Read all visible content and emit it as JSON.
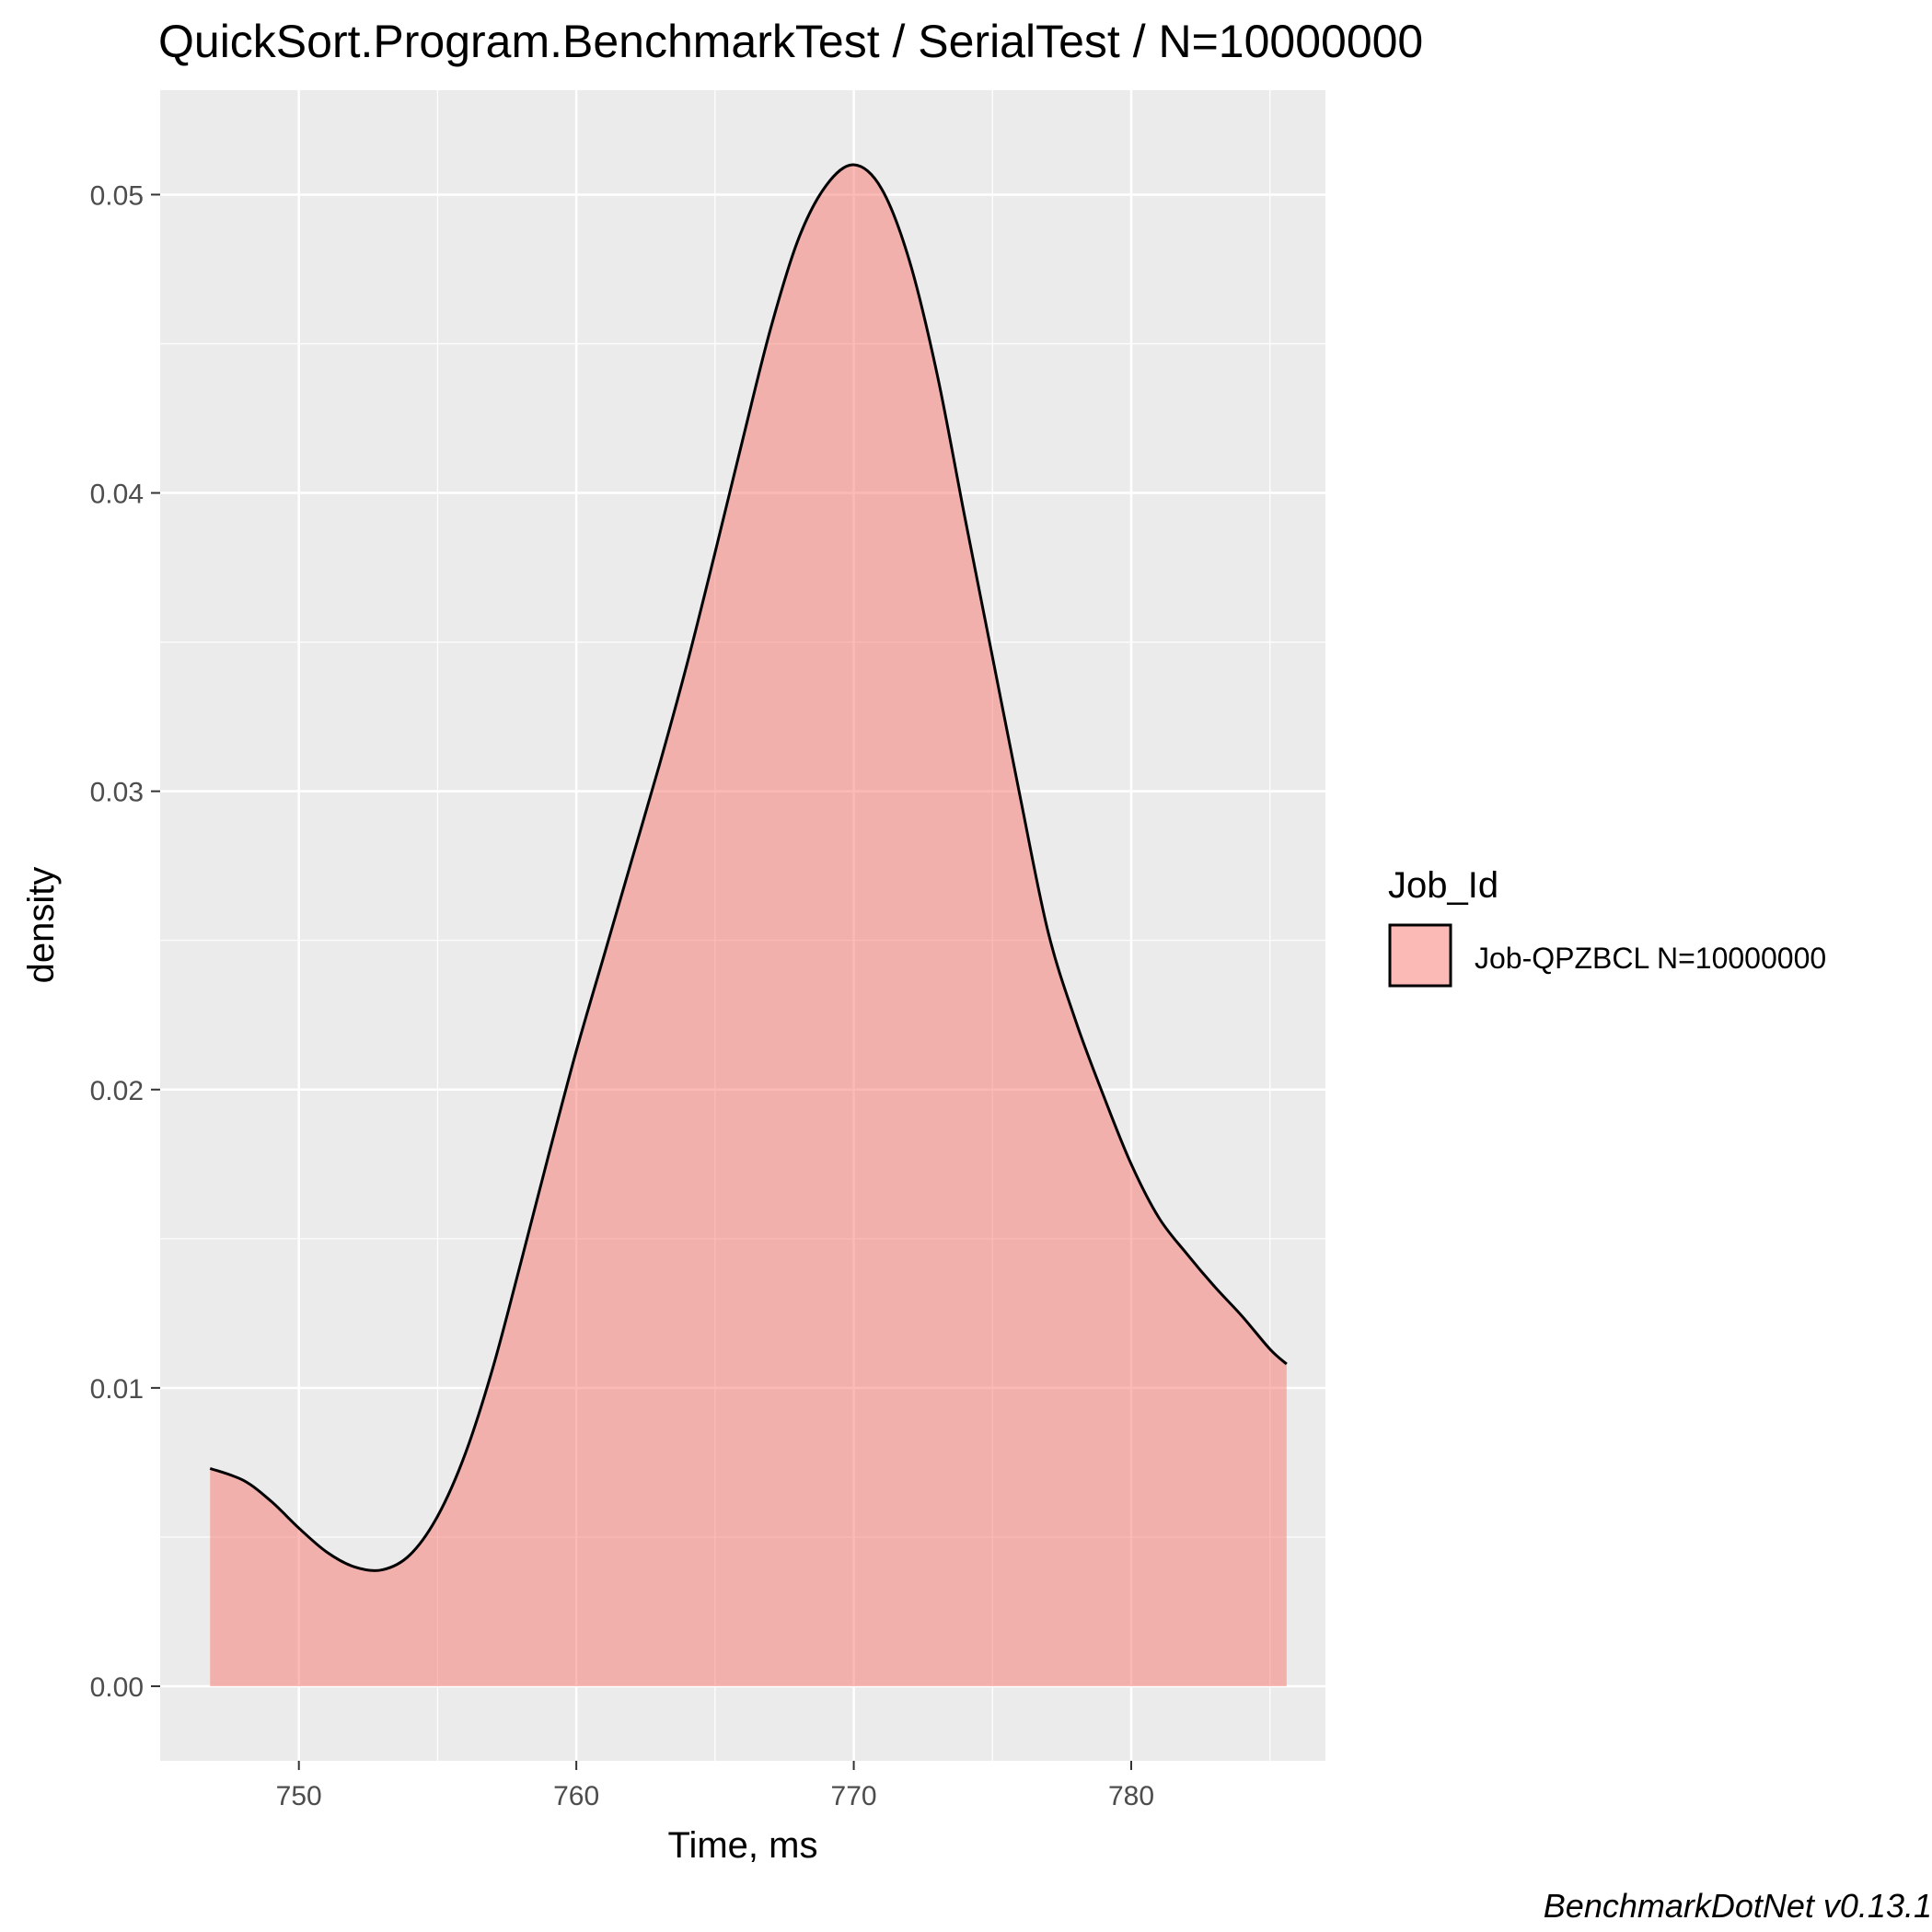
{
  "chart_data": {
    "type": "area",
    "subtype": "density",
    "title": "QuickSort.Program.BenchmarkTest / SerialTest / N=10000000",
    "xlabel": "Time, ms",
    "ylabel": "density",
    "caption": "BenchmarkDotNet v0.13.1",
    "xlim": [
      745,
      787
    ],
    "ylim": [
      -0.0025,
      0.0535
    ],
    "x_ticks": [
      750,
      760,
      770,
      780
    ],
    "x_tick_labels": [
      "750",
      "760",
      "770",
      "780"
    ],
    "y_ticks": [
      0,
      0.01,
      0.02,
      0.03,
      0.04,
      0.05
    ],
    "y_tick_labels": [
      "0.00",
      "0.01",
      "0.02",
      "0.03",
      "0.04",
      "0.05"
    ],
    "grid": true,
    "legend": {
      "title": "Job_Id",
      "position": "right",
      "entries": [
        "Job-QPZBCL N=10000000"
      ]
    },
    "colors": {
      "fill": "#F8766D",
      "fill_opacity": 0.5,
      "line": "#000000",
      "panel": "#EBEBEB",
      "grid": "#FFFFFF"
    },
    "series": [
      {
        "name": "Job-QPZBCL N=10000000",
        "x": [
          746.8,
          748,
          749,
          750,
          751,
          752,
          753,
          754,
          755,
          756,
          757,
          758,
          759,
          760,
          761,
          762,
          763,
          764,
          765,
          766,
          767,
          768,
          769,
          770,
          771,
          772,
          773,
          774,
          775,
          776,
          777,
          778,
          779,
          780,
          781,
          782,
          783,
          784,
          785,
          785.6
        ],
        "values": [
          0.0073,
          0.0069,
          0.0062,
          0.0053,
          0.0045,
          0.004,
          0.0039,
          0.0044,
          0.0057,
          0.0078,
          0.0107,
          0.0142,
          0.0178,
          0.0213,
          0.0245,
          0.0277,
          0.0309,
          0.0343,
          0.038,
          0.0418,
          0.0455,
          0.0485,
          0.0503,
          0.051,
          0.0502,
          0.0478,
          0.044,
          0.0392,
          0.0345,
          0.0298,
          0.0253,
          0.0223,
          0.0198,
          0.0175,
          0.0157,
          0.0145,
          0.0134,
          0.0124,
          0.0113,
          0.0108
        ]
      }
    ]
  }
}
